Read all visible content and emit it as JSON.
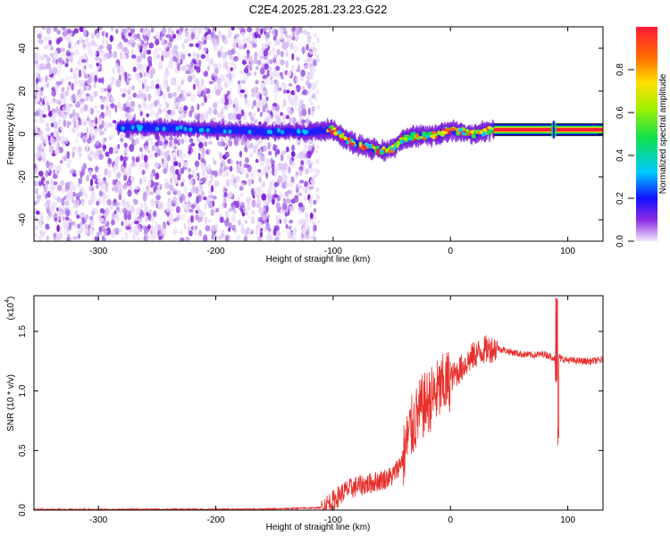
{
  "title": "C2E4.2025.281.23.23.G22",
  "chart_data": [
    {
      "type": "heatmap",
      "xlabel": "Height of straight line (km)",
      "ylabel": "Frequency (Hz)",
      "xlim": [
        -355,
        130
      ],
      "ylim": [
        -50,
        50
      ],
      "xticks": [
        -300,
        -200,
        -100,
        0,
        100
      ],
      "yticks": [
        -40,
        -20,
        0,
        20,
        40
      ],
      "noise_region_x": [
        -355,
        -120
      ],
      "trace_start_x": -283,
      "trace_end_x": 130,
      "trace_center_hz": [
        [
          -283,
          3
        ],
        [
          -250,
          3
        ],
        [
          -200,
          2
        ],
        [
          -150,
          1
        ],
        [
          -120,
          1
        ],
        [
          -100,
          2
        ],
        [
          -90,
          -2
        ],
        [
          -80,
          -5
        ],
        [
          -70,
          -6
        ],
        [
          -60,
          -8
        ],
        [
          -50,
          -7
        ],
        [
          -40,
          -2
        ],
        [
          -30,
          -1
        ],
        [
          -20,
          -1
        ],
        [
          -10,
          0
        ],
        [
          0,
          2
        ],
        [
          10,
          1
        ],
        [
          20,
          0
        ],
        [
          35,
          2
        ],
        [
          130,
          2
        ]
      ],
      "colorbar": {
        "label": "Normalized spectral amplitude",
        "ticks": [
          "0.0",
          "0.2",
          "0.4",
          "0.6",
          "0.8"
        ],
        "tick_values": [
          0.0,
          0.2,
          0.4,
          0.6,
          0.8
        ],
        "range": [
          0,
          1
        ]
      }
    },
    {
      "type": "line",
      "xlabel": "Height of straight line (km)",
      "ylabel": "SNR (10 * v/v)",
      "scale_label": "(x10",
      "scale_exp": "4",
      "xlim": [
        -355,
        130
      ],
      "ylim": [
        0,
        1.8
      ],
      "xticks": [
        -300,
        -200,
        -100,
        0,
        100
      ],
      "yticks": [
        "0.0",
        "0.5",
        "1.0",
        "1.5"
      ],
      "ytick_values": [
        0.0,
        0.5,
        1.0,
        1.5
      ],
      "series": [
        {
          "name": "SNR",
          "color": "#e8302c",
          "x": [
            -355,
            -300,
            -200,
            -150,
            -110,
            -100,
            -95,
            -90,
            -80,
            -70,
            -60,
            -50,
            -45,
            -40,
            -35,
            -30,
            -25,
            -20,
            -15,
            -10,
            -5,
            0,
            10,
            20,
            30,
            40,
            50,
            60,
            70,
            80,
            88,
            90,
            92,
            94,
            100,
            110,
            120,
            130
          ],
          "y": [
            0.005,
            0.005,
            0.006,
            0.01,
            0.02,
            0.08,
            0.12,
            0.16,
            0.2,
            0.22,
            0.25,
            0.28,
            0.35,
            0.45,
            0.65,
            0.75,
            0.85,
            0.9,
            0.95,
            1.0,
            1.05,
            1.1,
            1.2,
            1.3,
            1.35,
            1.36,
            1.33,
            1.31,
            1.3,
            1.31,
            1.28,
            1.25,
            1.3,
            1.27,
            1.26,
            1.25,
            1.25,
            1.26
          ]
        }
      ]
    }
  ],
  "colors": {
    "trace": "#e8302c",
    "noise": "#8a2be2"
  }
}
